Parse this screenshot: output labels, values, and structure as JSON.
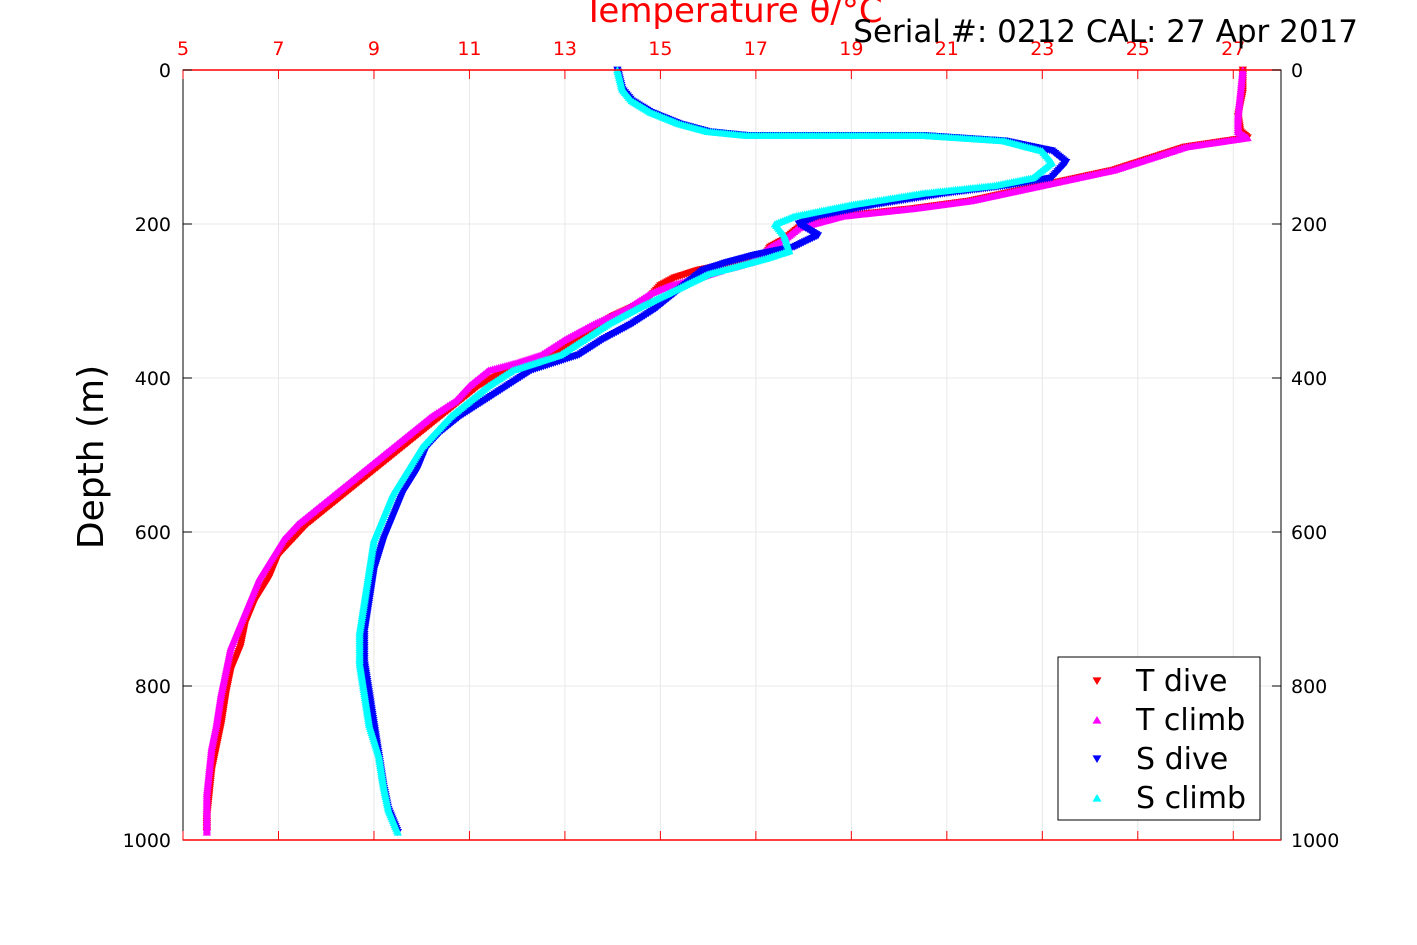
{
  "chart_data": {
    "type": "scatter",
    "title": "Temperature θ/°C",
    "annotation": "Serial #: 0212  CAL: 27 Apr 2017",
    "ylabel": "Depth (m)",
    "xlim": [
      5,
      28
    ],
    "ylim": [
      0,
      1000
    ],
    "y_reversed": true,
    "grid": true,
    "legend_placement": "bottom-right",
    "x_ticks": [
      "5",
      "7",
      "9",
      "11",
      "13",
      "15",
      "17",
      "19",
      "21",
      "23",
      "25",
      "27"
    ],
    "x_tick_values": [
      5,
      7,
      9,
      11,
      13,
      15,
      17,
      19,
      21,
      23,
      25,
      27
    ],
    "y_ticks": [
      "0",
      "200",
      "400",
      "600",
      "800",
      "1000"
    ],
    "y_tick_values": [
      0,
      200,
      400,
      600,
      800,
      1000
    ],
    "colors": {
      "axis_top": "#ff0000",
      "grid": "#e8e8e8"
    },
    "series": [
      {
        "name": "T dive",
        "color": "#ff0000",
        "marker": "triangle-down",
        "x": [
          27.2,
          27.2,
          27.1,
          27.15,
          27.3,
          26,
          24.5,
          23,
          21.5,
          20.3,
          18.8,
          17.9,
          17.6,
          17.3,
          17.2,
          16.6,
          15.8,
          15.3,
          15.0,
          14.7,
          14.0,
          13.5,
          13.0,
          12.3,
          11.8,
          11.2,
          10.8,
          10.4,
          10.0,
          9.6,
          9.2,
          8.8,
          8.4,
          8.0,
          7.6,
          7.3,
          7.0,
          6.8,
          6.5,
          6.3,
          6.2,
          6.0,
          5.9,
          5.8,
          5.7,
          5.6,
          5.55,
          5.5,
          5.5
        ],
        "y": [
          0,
          30,
          60,
          80,
          88,
          100,
          130,
          150,
          170,
          180,
          190,
          205,
          220,
          230,
          240,
          250,
          260,
          270,
          280,
          300,
          320,
          340,
          360,
          380,
          390,
          410,
          430,
          450,
          470,
          490,
          510,
          530,
          550,
          570,
          590,
          610,
          630,
          660,
          690,
          720,
          750,
          780,
          810,
          850,
          880,
          910,
          940,
          970,
          990
        ]
      },
      {
        "name": "T climb",
        "color": "#ff00ff",
        "marker": "triangle-up",
        "x": [
          27.2,
          27.15,
          27.1,
          27.1,
          27.3,
          26,
          24.5,
          23,
          21.5,
          20.3,
          18.8,
          17.9,
          17.6,
          17.3,
          16.9,
          16.3,
          15.8,
          15.2,
          14.8,
          14.3,
          13.6,
          13.0,
          12.5,
          12.0,
          11.4,
          11.0,
          10.7,
          10.2,
          9.8,
          9.4,
          9.0,
          8.6,
          8.2,
          7.8,
          7.4,
          7.1,
          6.9,
          6.6,
          6.4,
          6.2,
          6.0,
          5.9,
          5.8,
          5.7,
          5.6,
          5.55,
          5.5,
          5.5,
          5.5
        ],
        "y": [
          0,
          30,
          60,
          80,
          88,
          100,
          130,
          150,
          170,
          180,
          190,
          205,
          220,
          230,
          250,
          260,
          270,
          280,
          290,
          310,
          330,
          350,
          370,
          380,
          390,
          410,
          430,
          450,
          470,
          490,
          510,
          530,
          550,
          570,
          590,
          610,
          630,
          660,
          690,
          720,
          750,
          780,
          810,
          850,
          880,
          910,
          940,
          970,
          990
        ]
      },
      {
        "name": "S dive",
        "color": "#0000ff",
        "marker": "triangle-down",
        "x": [
          14.1,
          14.2,
          14.4,
          14.8,
          15.4,
          16.0,
          16.8,
          18.5,
          20.5,
          22.2,
          23.2,
          23.5,
          23.2,
          22.3,
          21.0,
          19.5,
          18.3,
          17.9,
          18.3,
          17.8,
          17.0,
          16.4,
          15.9,
          15.6,
          15.3,
          14.9,
          14.4,
          13.8,
          13.3,
          12.8,
          12.3,
          11.8,
          11.3,
          10.8,
          10.4,
          10.1,
          9.9,
          9.6,
          9.4,
          9.2,
          9.0,
          8.9,
          8.8,
          8.8,
          8.9,
          9.0,
          9.1,
          9.2,
          9.3,
          9.5
        ],
        "y": [
          0,
          25,
          40,
          55,
          70,
          80,
          85,
          85,
          85,
          92,
          105,
          120,
          140,
          150,
          160,
          175,
          190,
          200,
          215,
          230,
          240,
          250,
          260,
          275,
          290,
          310,
          330,
          350,
          370,
          380,
          390,
          410,
          430,
          450,
          470,
          490,
          520,
          550,
          580,
          610,
          650,
          690,
          730,
          770,
          810,
          850,
          890,
          930,
          960,
          990
        ]
      },
      {
        "name": "S climb",
        "color": "#00ffff",
        "marker": "triangle-up",
        "x": [
          14.1,
          14.2,
          14.4,
          14.8,
          15.4,
          16.0,
          16.8,
          18.5,
          20.5,
          22.2,
          23.0,
          23.2,
          22.8,
          22.0,
          20.5,
          19.0,
          17.8,
          17.4,
          17.6,
          17.7,
          17.2,
          16.6,
          16.0,
          15.5,
          15.0,
          14.5,
          13.9,
          13.4,
          12.9,
          12.4,
          11.9,
          11.4,
          11.0,
          10.6,
          10.3,
          10.0,
          9.7,
          9.4,
          9.2,
          9.0,
          8.9,
          8.8,
          8.7,
          8.7,
          8.8,
          8.9,
          9.1,
          9.2,
          9.3,
          9.5
        ],
        "y": [
          0,
          25,
          40,
          55,
          70,
          80,
          85,
          85,
          85,
          92,
          105,
          120,
          140,
          150,
          160,
          175,
          190,
          200,
          215,
          235,
          245,
          255,
          265,
          280,
          295,
          310,
          330,
          350,
          370,
          380,
          390,
          410,
          430,
          450,
          470,
          490,
          520,
          550,
          580,
          610,
          650,
          690,
          730,
          770,
          810,
          850,
          890,
          930,
          960,
          990
        ]
      }
    ]
  }
}
